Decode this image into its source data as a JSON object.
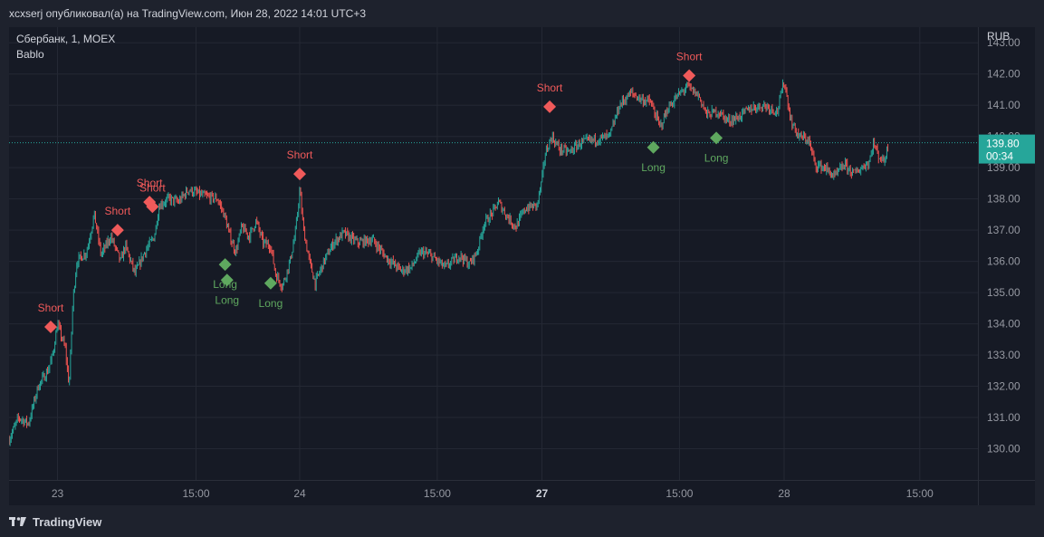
{
  "header": {
    "text": "xcxserj опубликовал(а) на TradingView.com, Июн 28, 2022 14:01 UTC+3"
  },
  "legend": {
    "symbol": "Сбербанк, 1, MOEX",
    "indicator": "Bablo"
  },
  "footer": {
    "brand": "TradingView",
    "logo_icon": "tradingview-logo-icon"
  },
  "colors": {
    "up": "#26a69a",
    "down": "#ef5350",
    "short": "#f05a5a",
    "long": "#5fa85f",
    "last": "#26a69a"
  },
  "chart_data": {
    "type": "candlestick",
    "currency": "RUB",
    "ylim": [
      129.0,
      143.5
    ],
    "y_ticks": [
      130.0,
      131.0,
      132.0,
      133.0,
      134.0,
      135.0,
      136.0,
      137.0,
      138.0,
      139.0,
      140.0,
      141.0,
      142.0,
      143.0
    ],
    "x_ticks": [
      {
        "label": "23",
        "pos": 0.05
      },
      {
        "label": "15:00",
        "pos": 0.193
      },
      {
        "label": "24",
        "pos": 0.3
      },
      {
        "label": "15:00",
        "pos": 0.442
      },
      {
        "label": "27",
        "pos": 0.55,
        "bold": true
      },
      {
        "label": "15:00",
        "pos": 0.692
      },
      {
        "label": "28",
        "pos": 0.8
      },
      {
        "label": "15:00",
        "pos": 0.94
      }
    ],
    "price_path": [
      [
        0.0,
        130.3
      ],
      [
        0.01,
        131.0
      ],
      [
        0.02,
        130.8
      ],
      [
        0.03,
        132.0
      ],
      [
        0.04,
        132.5
      ],
      [
        0.045,
        133.0
      ],
      [
        0.05,
        134.0
      ],
      [
        0.058,
        133.2
      ],
      [
        0.062,
        132.0
      ],
      [
        0.066,
        134.8
      ],
      [
        0.07,
        136.0
      ],
      [
        0.08,
        136.3
      ],
      [
        0.088,
        137.5
      ],
      [
        0.095,
        136.2
      ],
      [
        0.105,
        136.8
      ],
      [
        0.115,
        136.0
      ],
      [
        0.12,
        136.5
      ],
      [
        0.13,
        135.6
      ],
      [
        0.14,
        136.3
      ],
      [
        0.15,
        136.8
      ],
      [
        0.155,
        137.8
      ],
      [
        0.165,
        138.0
      ],
      [
        0.175,
        137.9
      ],
      [
        0.185,
        138.3
      ],
      [
        0.2,
        138.1
      ],
      [
        0.215,
        138.0
      ],
      [
        0.222,
        137.5
      ],
      [
        0.228,
        136.8
      ],
      [
        0.234,
        136.3
      ],
      [
        0.24,
        137.1
      ],
      [
        0.248,
        136.8
      ],
      [
        0.255,
        137.3
      ],
      [
        0.262,
        136.6
      ],
      [
        0.27,
        136.5
      ],
      [
        0.275,
        135.6
      ],
      [
        0.282,
        135.2
      ],
      [
        0.29,
        136.0
      ],
      [
        0.296,
        137.0
      ],
      [
        0.3,
        138.3
      ],
      [
        0.304,
        137.0
      ],
      [
        0.31,
        136.0
      ],
      [
        0.316,
        135.3
      ],
      [
        0.325,
        136.0
      ],
      [
        0.335,
        136.6
      ],
      [
        0.345,
        136.9
      ],
      [
        0.36,
        136.6
      ],
      [
        0.375,
        136.7
      ],
      [
        0.39,
        136.1
      ],
      [
        0.405,
        135.7
      ],
      [
        0.415,
        135.8
      ],
      [
        0.425,
        136.3
      ],
      [
        0.435,
        136.2
      ],
      [
        0.45,
        135.8
      ],
      [
        0.465,
        136.2
      ],
      [
        0.475,
        135.9
      ],
      [
        0.483,
        136.3
      ],
      [
        0.49,
        137.2
      ],
      [
        0.5,
        137.6
      ],
      [
        0.505,
        137.9
      ],
      [
        0.515,
        137.4
      ],
      [
        0.523,
        137.1
      ],
      [
        0.533,
        137.7
      ],
      [
        0.545,
        137.8
      ],
      [
        0.55,
        138.6
      ],
      [
        0.553,
        139.4
      ],
      [
        0.56,
        140.0
      ],
      [
        0.568,
        139.6
      ],
      [
        0.578,
        139.5
      ],
      [
        0.59,
        139.8
      ],
      [
        0.605,
        139.9
      ],
      [
        0.62,
        140.0
      ],
      [
        0.63,
        141.0
      ],
      [
        0.642,
        141.4
      ],
      [
        0.652,
        141.2
      ],
      [
        0.662,
        141.1
      ],
      [
        0.672,
        140.3
      ],
      [
        0.68,
        140.9
      ],
      [
        0.69,
        141.3
      ],
      [
        0.7,
        141.6
      ],
      [
        0.712,
        141.3
      ],
      [
        0.72,
        140.7
      ],
      [
        0.732,
        140.8
      ],
      [
        0.742,
        140.5
      ],
      [
        0.752,
        140.6
      ],
      [
        0.765,
        140.9
      ],
      [
        0.78,
        141.0
      ],
      [
        0.793,
        140.8
      ],
      [
        0.8,
        141.8
      ],
      [
        0.807,
        140.5
      ],
      [
        0.815,
        140.0
      ],
      [
        0.825,
        139.9
      ],
      [
        0.832,
        139.1
      ],
      [
        0.842,
        139.0
      ],
      [
        0.852,
        138.7
      ],
      [
        0.862,
        139.1
      ],
      [
        0.872,
        138.8
      ],
      [
        0.88,
        139.0
      ],
      [
        0.888,
        139.2
      ],
      [
        0.892,
        139.8
      ],
      [
        0.897,
        139.4
      ],
      [
        0.903,
        139.2
      ],
      [
        0.908,
        139.8
      ]
    ],
    "current_price": {
      "value": 139.8,
      "timer": "00:34"
    },
    "signals": [
      {
        "type": "short",
        "label": "Short",
        "x": 0.043,
        "price": 133.9
      },
      {
        "type": "short",
        "label": "Short",
        "x": 0.112,
        "price": 137.0
      },
      {
        "type": "short",
        "label": "Short",
        "x": 0.145,
        "price": 137.9
      },
      {
        "type": "short",
        "label": "Short",
        "x": 0.148,
        "price": 137.75
      },
      {
        "type": "long",
        "label": "Long",
        "x": 0.223,
        "price": 135.9
      },
      {
        "type": "long",
        "label": "Long",
        "x": 0.225,
        "price": 135.4
      },
      {
        "type": "long",
        "label": "Long",
        "x": 0.27,
        "price": 135.3
      },
      {
        "type": "short",
        "label": "Short",
        "x": 0.3,
        "price": 138.8
      },
      {
        "type": "short",
        "label": "Short",
        "x": 0.558,
        "price": 140.95
      },
      {
        "type": "long",
        "label": "Long",
        "x": 0.665,
        "price": 139.65
      },
      {
        "type": "short",
        "label": "Short",
        "x": 0.702,
        "price": 141.95
      },
      {
        "type": "long",
        "label": "Long",
        "x": 0.73,
        "price": 139.95
      }
    ]
  }
}
